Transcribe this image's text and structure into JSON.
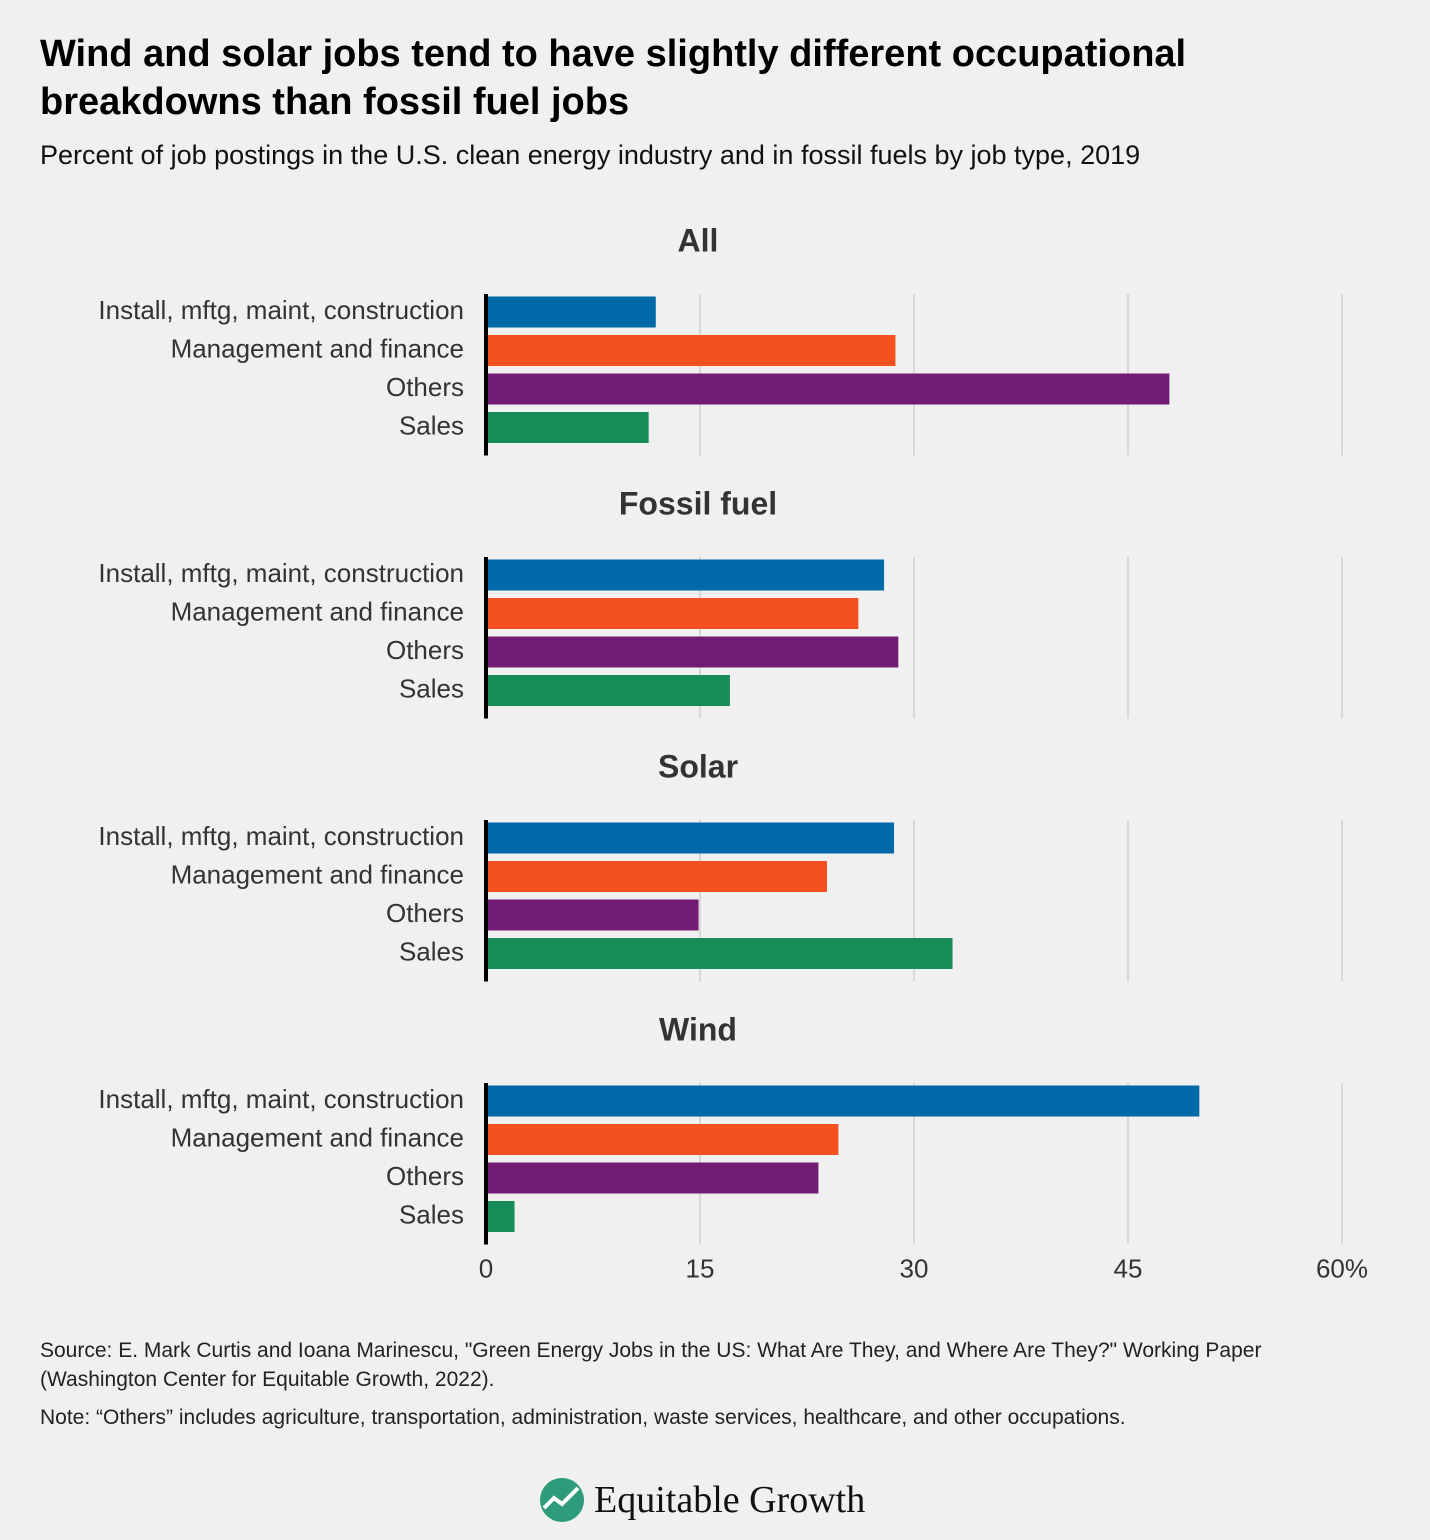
{
  "header": {
    "title": "Wind and solar jobs tend to have slightly different occupational breakdowns than fossil fuel jobs",
    "subtitle": "Percent of job postings in the U.S. clean energy industry and in fossil fuels by job type, 2019"
  },
  "chart_data": [
    {
      "type": "bar",
      "orientation": "horizontal",
      "title": "All",
      "categories": [
        "Install, mftg, maint, construction",
        "Management and finance",
        "Others",
        "Sales"
      ],
      "values": [
        11.9,
        28.7,
        47.9,
        11.4
      ],
      "colors": [
        "#0069a8",
        "#f4511e",
        "#721b74",
        "#178c56"
      ],
      "xlim": [
        0,
        60
      ],
      "xticks": [
        0,
        15,
        30,
        45,
        {
          "value": 60,
          "label": "60%"
        }
      ],
      "grid": true
    },
    {
      "type": "bar",
      "orientation": "horizontal",
      "title": "Fossil fuel",
      "categories": [
        "Install, mftg, maint, construction",
        "Management and finance",
        "Others",
        "Sales"
      ],
      "values": [
        27.9,
        26.1,
        28.9,
        17.1
      ],
      "colors": [
        "#0069a8",
        "#f4511e",
        "#721b74",
        "#178c56"
      ],
      "xlim": [
        0,
        60
      ],
      "xticks": [
        0,
        15,
        30,
        45,
        {
          "value": 60,
          "label": "60%"
        }
      ],
      "grid": true
    },
    {
      "type": "bar",
      "orientation": "horizontal",
      "title": "Solar",
      "categories": [
        "Install, mftg, maint, construction",
        "Management and finance",
        "Others",
        "Sales"
      ],
      "values": [
        28.6,
        23.9,
        14.9,
        32.7
      ],
      "colors": [
        "#0069a8",
        "#f4511e",
        "#721b74",
        "#178c56"
      ],
      "xlim": [
        0,
        60
      ],
      "xticks": [
        0,
        15,
        30,
        45,
        {
          "value": 60,
          "label": "60%"
        }
      ],
      "grid": true
    },
    {
      "type": "bar",
      "orientation": "horizontal",
      "title": "Wind",
      "categories": [
        "Install, mftg, maint, construction",
        "Management and finance",
        "Others",
        "Sales"
      ],
      "values": [
        50.0,
        24.7,
        23.3,
        2.0
      ],
      "colors": [
        "#0069a8",
        "#f4511e",
        "#721b74",
        "#178c56"
      ],
      "xlim": [
        0,
        60
      ],
      "xticks": [
        0,
        15,
        30,
        45,
        {
          "value": 60,
          "label": "60%"
        }
      ],
      "grid": true
    }
  ],
  "footer": {
    "source": "Source: E. Mark Curtis and Ioana Marinescu, \"Green Energy Jobs in the US: What Are They, and Where Are They?\" Working Paper (Washington Center for Equitable Growth, 2022).",
    "note": "Note: “Others” includes agriculture, transportation, administration,  waste services, healthcare, and other occupations.",
    "logo": "Equitable Growth"
  }
}
